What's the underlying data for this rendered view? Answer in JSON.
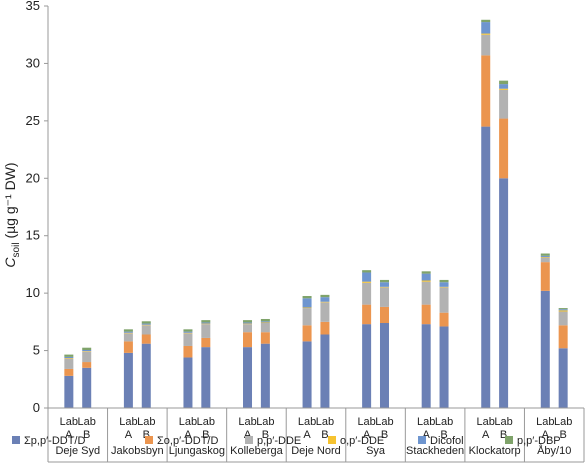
{
  "chart_data": {
    "type": "bar",
    "stacked": true,
    "ylabel_main": "C",
    "ylabel_sub": "soil",
    "ylabel_unit": " (µg g⁻¹ DW)",
    "ylim": [
      0,
      35
    ],
    "yticks": [
      0,
      5,
      10,
      15,
      20,
      25,
      30,
      35
    ],
    "grid": false,
    "legend_position": "bottom",
    "categories": [
      "Deje Syd",
      "Jakobsbyn",
      "Ljungaskog",
      "Kolleberga",
      "Deje Nord",
      "Sya",
      "Stackheden",
      "Klockatorp",
      "Åby/10"
    ],
    "labs": [
      {
        "line1": "Lab",
        "line2": "A"
      },
      {
        "line1": "Lab",
        "line2": "B"
      }
    ],
    "series": [
      {
        "name": "Σp,p′-DDT/D",
        "color": "#6B80B5",
        "values": [
          [
            2.8,
            3.5
          ],
          [
            4.8,
            5.6
          ],
          [
            4.4,
            5.3
          ],
          [
            5.3,
            5.6
          ],
          [
            5.8,
            6.4
          ],
          [
            7.3,
            7.4
          ],
          [
            7.3,
            7.1
          ],
          [
            24.5,
            20.0
          ],
          [
            10.2,
            5.2
          ]
        ]
      },
      {
        "name": "Σo,p′-DDT/D",
        "color": "#EB954F",
        "values": [
          [
            0.6,
            0.5
          ],
          [
            1.0,
            0.8
          ],
          [
            1.0,
            0.8
          ],
          [
            1.3,
            1.0
          ],
          [
            1.4,
            1.1
          ],
          [
            1.7,
            1.4
          ],
          [
            1.7,
            1.2
          ],
          [
            6.2,
            5.2
          ],
          [
            2.5,
            2.0
          ]
        ]
      },
      {
        "name": "p,p′-DDE",
        "color": "#B2B2B2",
        "values": [
          [
            0.9,
            0.9
          ],
          [
            0.7,
            0.8
          ],
          [
            1.1,
            1.2
          ],
          [
            0.7,
            0.8
          ],
          [
            1.5,
            1.7
          ],
          [
            1.9,
            1.7
          ],
          [
            2.0,
            2.2
          ],
          [
            1.8,
            2.5
          ],
          [
            0.4,
            1.2
          ]
        ]
      },
      {
        "name": "o,p′-DDE",
        "color": "#F6C330",
        "values": [
          [
            0.05,
            0.05
          ],
          [
            0.05,
            0.05
          ],
          [
            0.05,
            0.05
          ],
          [
            0.05,
            0.05
          ],
          [
            0.05,
            0.05
          ],
          [
            0.1,
            0.05
          ],
          [
            0.1,
            0.05
          ],
          [
            0.1,
            0.1
          ],
          [
            0.05,
            0.1
          ]
        ]
      },
      {
        "name": "Dicofol",
        "color": "#6E95CF",
        "values": [
          [
            0.1,
            0.1
          ],
          [
            0.1,
            0.1
          ],
          [
            0.1,
            0.1
          ],
          [
            0.1,
            0.1
          ],
          [
            0.8,
            0.4
          ],
          [
            0.8,
            0.4
          ],
          [
            0.6,
            0.4
          ],
          [
            1.0,
            0.4
          ],
          [
            0.1,
            0.1
          ]
        ]
      },
      {
        "name": "p,p′-DBP",
        "color": "#7FA36A",
        "values": [
          [
            0.2,
            0.2
          ],
          [
            0.2,
            0.2
          ],
          [
            0.2,
            0.2
          ],
          [
            0.2,
            0.2
          ],
          [
            0.2,
            0.2
          ],
          [
            0.2,
            0.2
          ],
          [
            0.2,
            0.2
          ],
          [
            0.2,
            0.3
          ],
          [
            0.2,
            0.1
          ]
        ]
      }
    ]
  }
}
